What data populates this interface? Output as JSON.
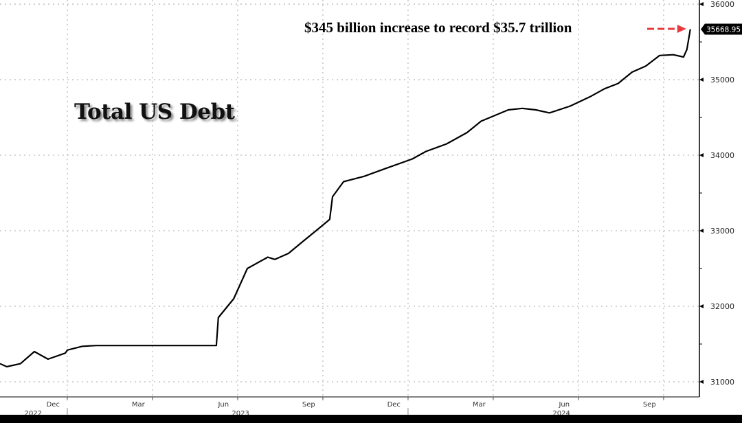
{
  "chart_data": {
    "type": "line",
    "title": "Total US Debt",
    "annotation": "$345 billion increase to record $35.7 trillion",
    "last_value_label": "35668.95",
    "xlabel": "",
    "ylabel": "",
    "x_units": "months since Jan 2023",
    "xlim": [
      -2.37,
      22.26
    ],
    "ylim": [
      30800,
      36055
    ],
    "grid": true,
    "y_ticks": [
      31000,
      32000,
      33000,
      34000,
      35000,
      36000
    ],
    "x_gridlines": [
      0,
      3,
      6,
      9,
      12,
      15,
      18,
      21
    ],
    "month_labels": [
      {
        "label": "Dec",
        "x": -0.5
      },
      {
        "label": "Mar",
        "x": 2.5
      },
      {
        "label": "Jun",
        "x": 5.5
      },
      {
        "label": "Sep",
        "x": 8.5
      },
      {
        "label": "Dec",
        "x": 11.5
      },
      {
        "label": "Mar",
        "x": 14.5
      },
      {
        "label": "Jun",
        "x": 17.5
      },
      {
        "label": "Sep",
        "x": 20.5
      }
    ],
    "year_labels": [
      {
        "label": "2022",
        "x": -1.2
      },
      {
        "label": "2023",
        "x": 6.1
      },
      {
        "label": "2024",
        "x": 17.4
      }
    ],
    "year_separators": [
      0,
      12
    ],
    "series": [
      {
        "name": "Total US Debt",
        "x": [
          -2.37,
          -2.13,
          -1.65,
          -1.16,
          -0.68,
          -0.07,
          0,
          0.53,
          1.02,
          5.25,
          5.32,
          5.86,
          6.34,
          6.82,
          7.06,
          7.31,
          7.79,
          8.27,
          8.76,
          9.24,
          9.34,
          9.73,
          10.45,
          11.18,
          12.15,
          12.63,
          13.36,
          14.08,
          14.57,
          15.53,
          16.02,
          16.5,
          16.98,
          17.71,
          18.44,
          18.92,
          19.4,
          19.89,
          20.37,
          20.86,
          21.34,
          21.7,
          21.82,
          21.94
        ],
        "y": [
          31240,
          31200,
          31240,
          31400,
          31300,
          31380,
          31420,
          31470,
          31480,
          31480,
          31850,
          32100,
          32500,
          32600,
          32650,
          32620,
          32700,
          32850,
          33000,
          33150,
          33450,
          33650,
          33720,
          33820,
          33950,
          34050,
          34150,
          34300,
          34450,
          34600,
          34620,
          34600,
          34560,
          34650,
          34780,
          34880,
          34950,
          35100,
          35180,
          35320,
          35330,
          35300,
          35400,
          35668.95
        ]
      }
    ],
    "colors": {
      "line": "#000000",
      "arrow": "#e8393f",
      "grid": "#bbbbbb"
    }
  }
}
